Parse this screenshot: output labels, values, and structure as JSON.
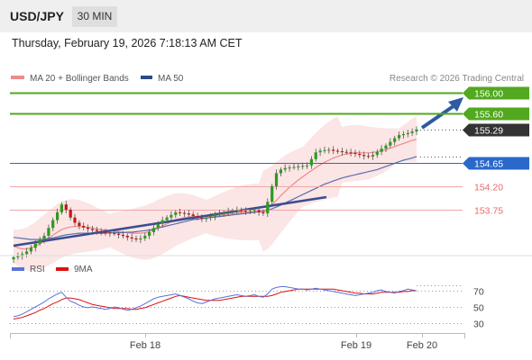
{
  "header": {
    "symbol": "USD/JPY",
    "timeframe": "30 MIN"
  },
  "timestamp": "Thursday, February 19, 2026 7:18:13 AM CET",
  "legend": {
    "items": [
      {
        "label": "MA 20 + Bollinger Bands",
        "color": "#f08a8a"
      },
      {
        "label": "MA 50",
        "color": "#2c4a8c"
      }
    ],
    "credit": "Research © 2026 Trading Central"
  },
  "colors": {
    "candle_up": "#2e9a1f",
    "candle_down": "#c81414",
    "resistance": "#52a81f",
    "current": "#333333",
    "pivot": "#2a68c9",
    "support": "#e86a6a",
    "rsi": "#5a72d8",
    "rsi_ma": "#dd1010"
  },
  "levels": [
    {
      "label": "156.00",
      "value": 156.0,
      "type": "resistance"
    },
    {
      "label": "155.60",
      "value": 155.6,
      "type": "resistance"
    },
    {
      "label": "155.29",
      "value": 155.29,
      "type": "current"
    },
    {
      "label": "154.65",
      "value": 154.65,
      "type": "pivot"
    },
    {
      "label": "154.20",
      "value": 154.2,
      "type": "support"
    },
    {
      "label": "153.75",
      "value": 153.75,
      "type": "support"
    }
  ],
  "xaxis_labels": [
    "Feb 18",
    "Feb 19",
    "Feb 20"
  ],
  "rsi_panel": {
    "legend": [
      "RSI",
      "9MA"
    ],
    "levels": [
      "70",
      "50",
      "30"
    ]
  },
  "chart_data": {
    "type": "candlestick",
    "price_range": [
      152.75,
      156.2
    ],
    "closes": [
      152.84,
      152.86,
      152.9,
      152.95,
      153.02,
      153.1,
      153.17,
      153.25,
      153.4,
      153.55,
      153.7,
      153.85,
      153.75,
      153.6,
      153.5,
      153.44,
      153.41,
      153.38,
      153.36,
      153.34,
      153.32,
      153.31,
      153.3,
      153.29,
      153.27,
      153.25,
      153.22,
      153.2,
      153.18,
      153.2,
      153.25,
      153.32,
      153.4,
      153.48,
      153.55,
      153.6,
      153.65,
      153.7,
      153.69,
      153.68,
      153.66,
      153.63,
      153.6,
      153.58,
      153.59,
      153.62,
      153.66,
      153.68,
      153.7,
      153.72,
      153.73,
      153.74,
      153.73,
      153.72,
      153.73,
      153.74,
      153.7,
      153.68,
      153.9,
      154.2,
      154.45,
      154.52,
      154.55,
      154.56,
      154.57,
      154.58,
      154.59,
      154.6,
      154.72,
      154.85,
      154.88,
      154.89,
      154.9,
      154.88,
      154.87,
      154.86,
      154.85,
      154.84,
      154.82,
      154.8,
      154.78,
      154.77,
      154.8,
      154.86,
      154.92,
      154.98,
      155.05,
      155.12,
      155.18,
      155.2,
      155.22,
      155.25,
      155.29
    ],
    "ma20": [
      153.05,
      153.02,
      153.0,
      153.0,
      153.02,
      153.05,
      153.1,
      153.15,
      153.2,
      153.26,
      153.32,
      153.37,
      153.4,
      153.42,
      153.43,
      153.43,
      153.42,
      153.41,
      153.4,
      153.38,
      153.37,
      153.36,
      153.35,
      153.34,
      153.33,
      153.32,
      153.31,
      153.3,
      153.3,
      153.3,
      153.31,
      153.33,
      153.36,
      153.4,
      153.44,
      153.48,
      153.52,
      153.56,
      153.58,
      153.6,
      153.61,
      153.62,
      153.62,
      153.62,
      153.62,
      153.62,
      153.63,
      153.64,
      153.65,
      153.66,
      153.67,
      153.68,
      153.69,
      153.7,
      153.7,
      153.71,
      153.71,
      153.72,
      153.77,
      153.84,
      153.93,
      154.02,
      154.1,
      154.18,
      154.25,
      154.32,
      154.38,
      154.44,
      154.5,
      154.56,
      154.61,
      154.66,
      154.7,
      154.74,
      154.77,
      154.8,
      154.82,
      154.83,
      154.84,
      154.84,
      154.84,
      154.84,
      154.85,
      154.86,
      154.88,
      154.9,
      154.93,
      154.96,
      154.99,
      155.02,
      155.05,
      155.08,
      155.1
    ],
    "ma50": [
      153.22,
      153.21,
      153.2,
      153.19,
      153.18,
      153.18,
      153.18,
      153.19,
      153.2,
      153.21,
      153.23,
      153.25,
      153.27,
      153.28,
      153.29,
      153.3,
      153.3,
      153.3,
      153.3,
      153.3,
      153.3,
      153.3,
      153.31,
      153.31,
      153.31,
      153.31,
      153.32,
      153.32,
      153.33,
      153.34,
      153.35,
      153.36,
      153.38,
      153.4,
      153.42,
      153.44,
      153.46,
      153.48,
      153.5,
      153.52,
      153.54,
      153.56,
      153.57,
      153.58,
      153.59,
      153.6,
      153.61,
      153.62,
      153.63,
      153.64,
      153.65,
      153.66,
      153.67,
      153.68,
      153.69,
      153.7,
      153.71,
      153.72,
      153.74,
      153.77,
      153.8,
      153.84,
      153.88,
      153.92,
      153.96,
      154.0,
      154.04,
      154.08,
      154.12,
      154.16,
      154.2,
      154.24,
      154.27,
      154.3,
      154.33,
      154.36,
      154.38,
      154.4,
      154.42,
      154.44,
      154.46,
      154.48,
      154.5,
      154.52,
      154.55,
      154.58,
      154.61,
      154.64,
      154.67,
      154.7,
      154.72,
      154.74,
      154.77
    ],
    "rsi": [
      38,
      39,
      41,
      44,
      47,
      50,
      53,
      56,
      60,
      63,
      66,
      68,
      62,
      57,
      55,
      52,
      50,
      49,
      50,
      49,
      48,
      47,
      48,
      50,
      49,
      47,
      46,
      47,
      49,
      51,
      54,
      57,
      60,
      62,
      63,
      64,
      65,
      66,
      64,
      62,
      60,
      57,
      55,
      54,
      56,
      58,
      60,
      61,
      62,
      63,
      64,
      65,
      64,
      63,
      64,
      65,
      63,
      62,
      66,
      72,
      74,
      75,
      75,
      74,
      73,
      72,
      72,
      71,
      72,
      73,
      72,
      71,
      70,
      69,
      68,
      67,
      66,
      65,
      64,
      65,
      66,
      67,
      68,
      70,
      71,
      69,
      68,
      67,
      69,
      70,
      72,
      71,
      70
    ],
    "rsi_ma": [
      35,
      36,
      37,
      39,
      41,
      43,
      46,
      48,
      51,
      54,
      56,
      59,
      61,
      61,
      60,
      59,
      57,
      55,
      53,
      52,
      51,
      50,
      49,
      48,
      48,
      48,
      48,
      47,
      47,
      48,
      49,
      51,
      53,
      55,
      57,
      59,
      61,
      63,
      64,
      63,
      62,
      61,
      60,
      59,
      58,
      58,
      58,
      58,
      59,
      60,
      61,
      62,
      63,
      63,
      63,
      63,
      63,
      63,
      63,
      64,
      66,
      68,
      69,
      70,
      71,
      72,
      72,
      72,
      72,
      72,
      72,
      72,
      72,
      72,
      71,
      70,
      69,
      68,
      67,
      67,
      66,
      66,
      66,
      67,
      68,
      68,
      68,
      68,
      68,
      69,
      69,
      70,
      70
    ],
    "x_labels": [
      "Feb 18",
      "Feb 19",
      "Feb 20"
    ]
  }
}
